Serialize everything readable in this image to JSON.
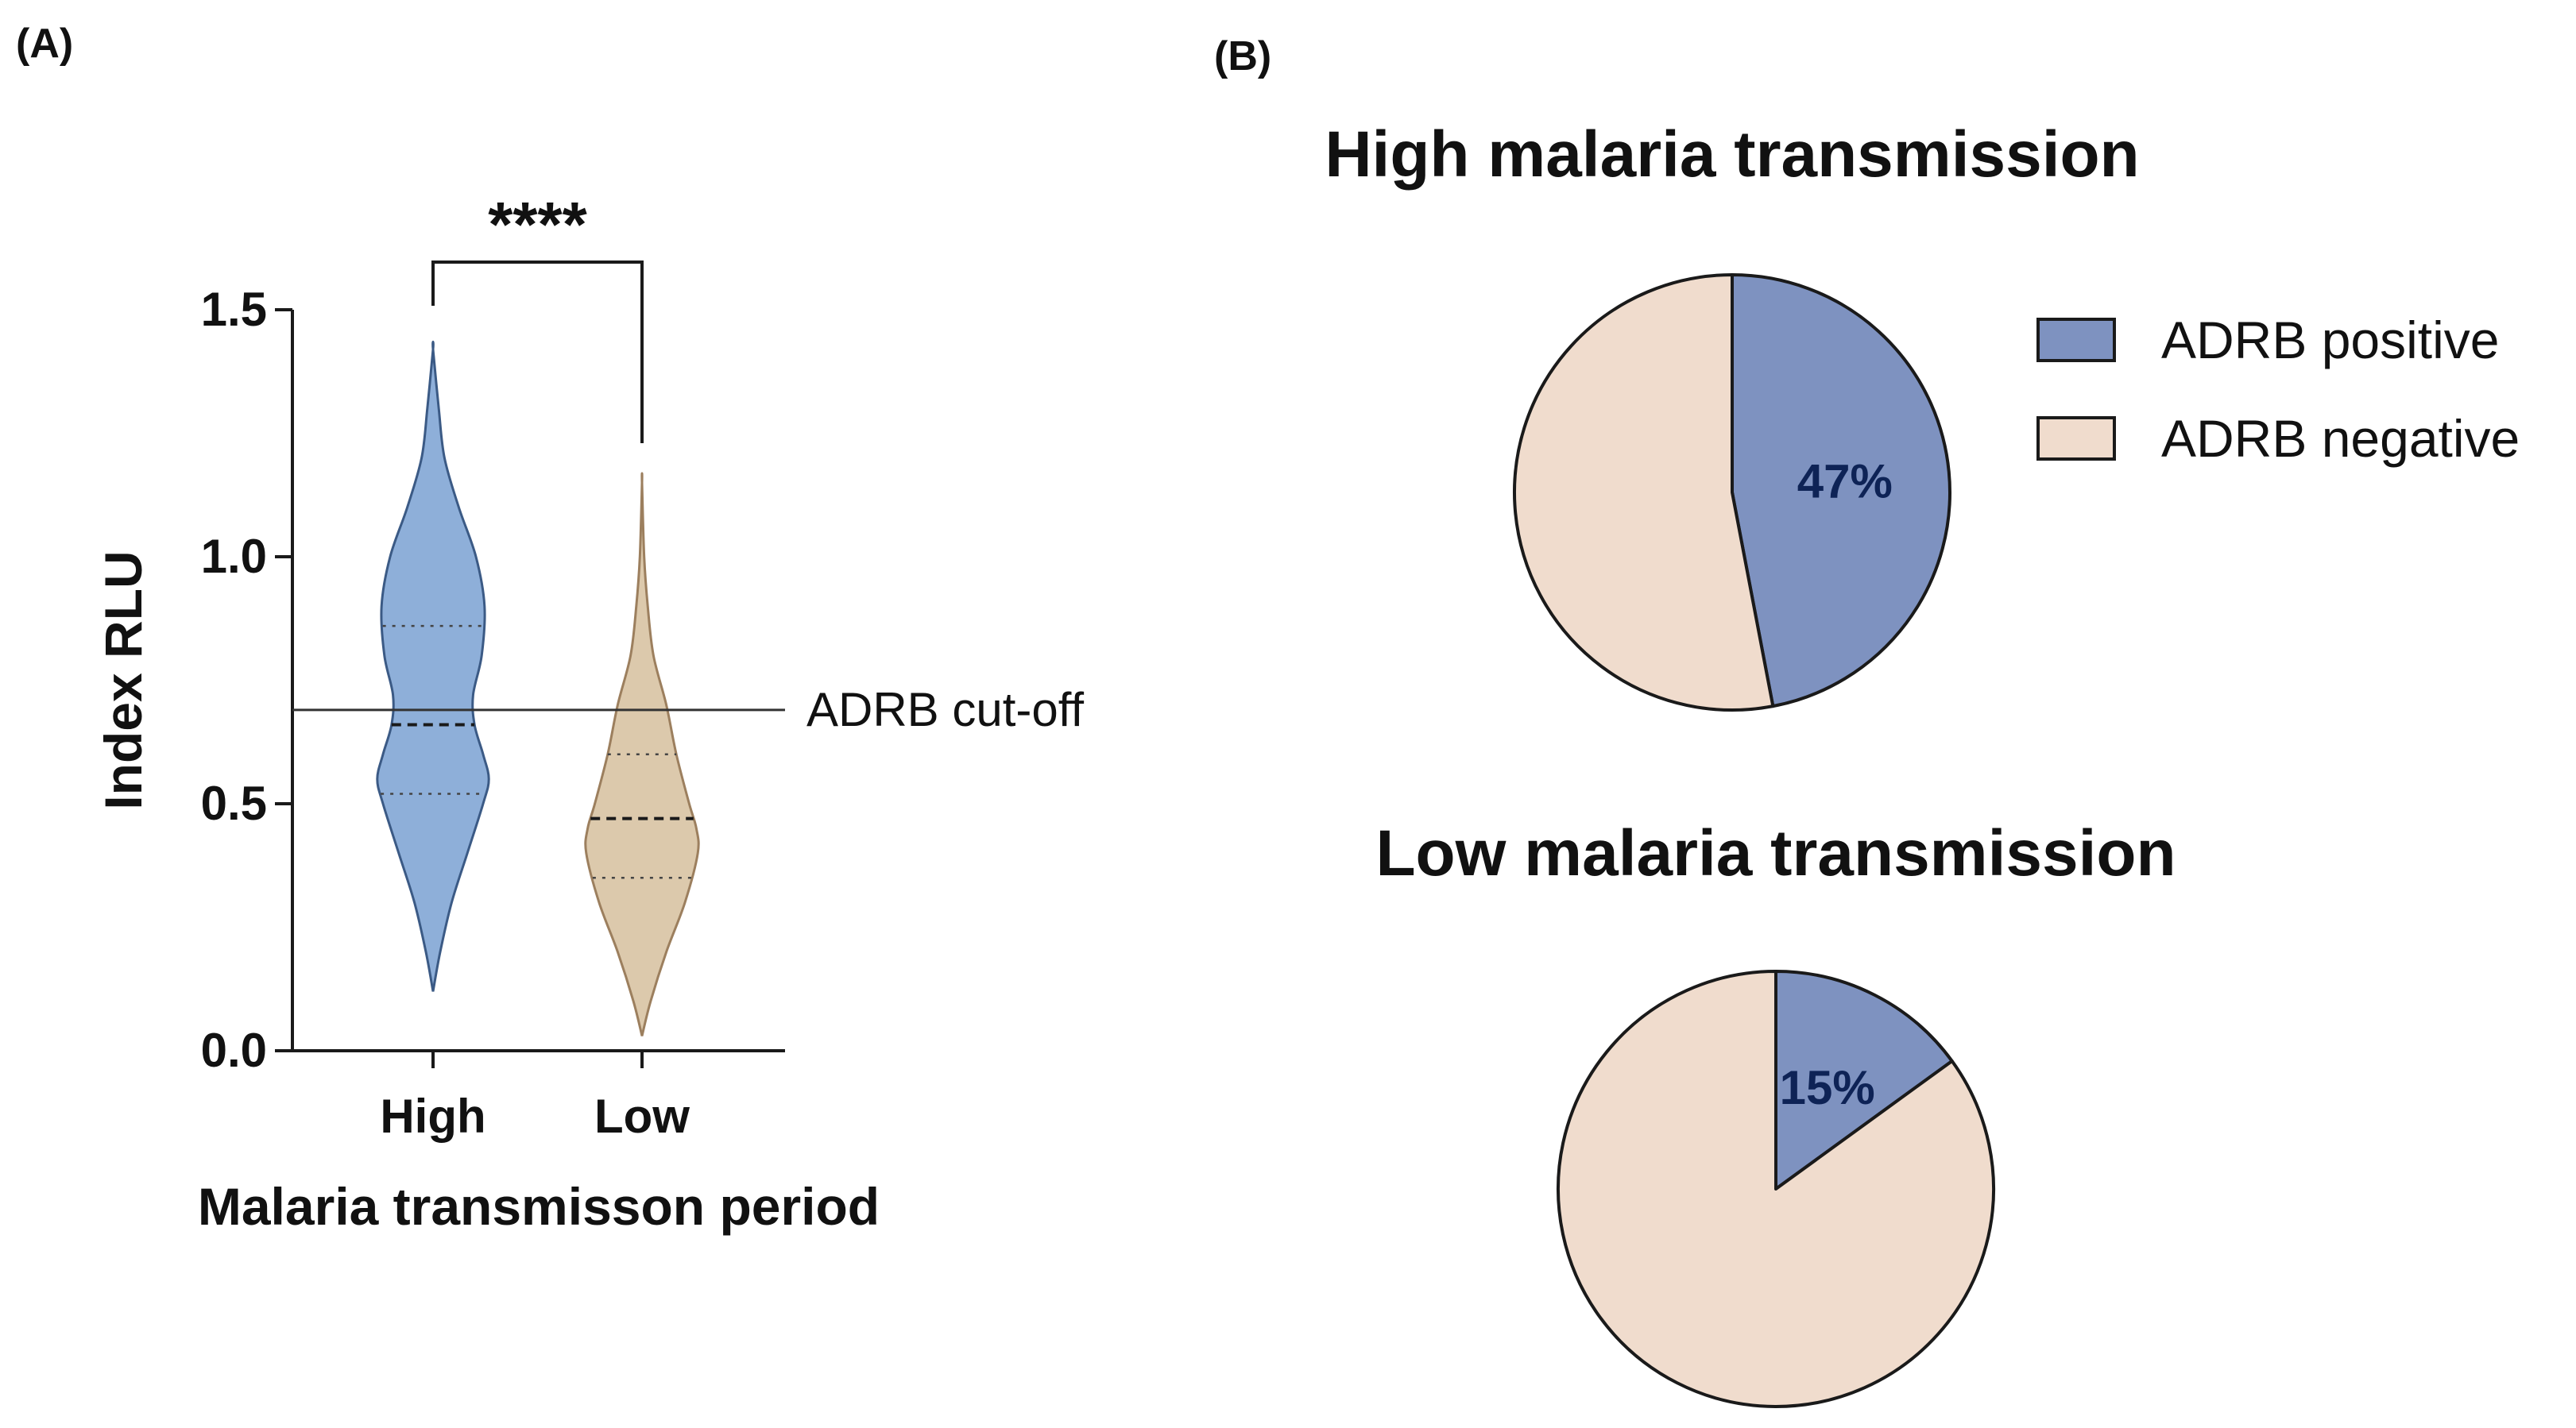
{
  "panels": {
    "a_label": "(A)",
    "b_label": "(B)"
  },
  "colors": {
    "high_fill": "#8eafd9",
    "high_stroke": "#3b5a85",
    "low_fill": "#dcc9ac",
    "low_stroke": "#9c7f5e",
    "positive": "#7e92c0",
    "negative": "#f0dccd",
    "axis": "#1a1a1a",
    "pct_text": "#0e2356"
  },
  "chart_data": [
    {
      "type": "violin",
      "title": "",
      "xlabel": "Malaria transmisson period",
      "ylabel": "Index RLU",
      "ylim": [
        0,
        1.5
      ],
      "yticks": [
        "0.0",
        "0.5",
        "1.0",
        "1.5"
      ],
      "ytick_values": [
        0,
        0.5,
        1.0,
        1.5
      ],
      "categories": [
        "High",
        "Low"
      ],
      "series": [
        {
          "name": "High",
          "min": 0.12,
          "max": 1.42,
          "median": 0.66,
          "q1": 0.52,
          "q3": 0.86,
          "density_y": [
            0.12,
            0.2,
            0.3,
            0.4,
            0.5,
            0.55,
            0.6,
            0.66,
            0.72,
            0.8,
            0.9,
            1.0,
            1.1,
            1.2,
            1.3,
            1.42
          ],
          "density_w": [
            0.0,
            0.1,
            0.26,
            0.48,
            0.7,
            0.78,
            0.7,
            0.58,
            0.56,
            0.68,
            0.72,
            0.6,
            0.36,
            0.16,
            0.08,
            0.0
          ]
        },
        {
          "name": "Low",
          "min": 0.03,
          "max": 1.15,
          "median": 0.47,
          "q1": 0.35,
          "q3": 0.6,
          "density_y": [
            0.03,
            0.1,
            0.2,
            0.3,
            0.4,
            0.45,
            0.5,
            0.6,
            0.7,
            0.8,
            0.9,
            1.0,
            1.15
          ],
          "density_w": [
            0.0,
            0.12,
            0.34,
            0.6,
            0.78,
            0.76,
            0.66,
            0.48,
            0.34,
            0.16,
            0.08,
            0.03,
            0.0
          ]
        }
      ],
      "cutoff": {
        "value": 0.69,
        "label": "ADRB cut-off"
      },
      "significance": "****"
    },
    {
      "type": "pie",
      "title": "High malaria transmission",
      "slices": [
        {
          "label": "ADRB positive",
          "value": 47,
          "text": "47%"
        },
        {
          "label": "ADRB negative",
          "value": 53,
          "text": ""
        }
      ]
    },
    {
      "type": "pie",
      "title": "Low malaria transmission",
      "slices": [
        {
          "label": "ADRB positive",
          "value": 15,
          "text": "15%"
        },
        {
          "label": "ADRB negative",
          "value": 85,
          "text": ""
        }
      ]
    }
  ],
  "legend": [
    {
      "label": "ADRB positive",
      "color_key": "positive"
    },
    {
      "label": "ADRB negative",
      "color_key": "negative"
    }
  ]
}
